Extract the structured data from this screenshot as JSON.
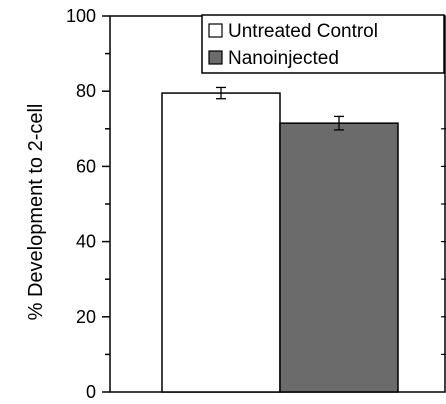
{
  "chart_data": {
    "type": "bar",
    "title": "",
    "xlabel": "",
    "ylabel": "% Development to 2-cell",
    "ylim": [
      0,
      100
    ],
    "yticks": [
      0,
      20,
      40,
      60,
      80,
      100
    ],
    "grid": false,
    "legend_position": "top-right",
    "series": [
      {
        "name": "Untreated Control",
        "values": [
          79.5
        ],
        "error": [
          1.5
        ],
        "color": "#ffffff"
      },
      {
        "name": "Nanoinjected",
        "values": [
          71.5
        ],
        "error": [
          1.8
        ],
        "color": "#6b6b6b"
      }
    ]
  }
}
